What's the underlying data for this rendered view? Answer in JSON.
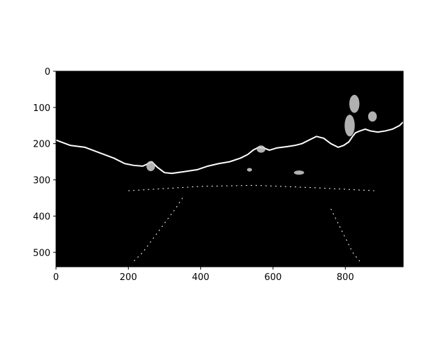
{
  "chart_data": {
    "type": "heatmap",
    "colormap": "gray",
    "background_color": "#000000",
    "foreground_color": "#ffffff",
    "x_range": [
      0,
      960
    ],
    "y_range": [
      0,
      540
    ],
    "y_inverted": true,
    "x_ticks": [
      0,
      200,
      400,
      600,
      800
    ],
    "y_ticks": [
      0,
      100,
      200,
      300,
      400,
      500
    ],
    "x_tick_labels": [
      "0",
      "200",
      "400",
      "600",
      "800"
    ],
    "y_tick_labels": [
      "0",
      "100",
      "200",
      "300",
      "400",
      "500"
    ],
    "grid": false,
    "edge_paths": [
      {
        "name": "horizon-edge",
        "points": [
          [
            0,
            190
          ],
          [
            40,
            205
          ],
          [
            80,
            210
          ],
          [
            120,
            225
          ],
          [
            160,
            240
          ],
          [
            190,
            255
          ],
          [
            215,
            260
          ],
          [
            240,
            262
          ],
          [
            255,
            255
          ],
          [
            265,
            250
          ],
          [
            280,
            265
          ],
          [
            300,
            280
          ],
          [
            320,
            282
          ],
          [
            350,
            278
          ],
          [
            390,
            272
          ],
          [
            420,
            262
          ],
          [
            450,
            255
          ],
          [
            480,
            250
          ],
          [
            510,
            240
          ],
          [
            530,
            230
          ],
          [
            545,
            218
          ],
          [
            560,
            210
          ],
          [
            575,
            212
          ],
          [
            590,
            218
          ],
          [
            610,
            212
          ],
          [
            640,
            208
          ],
          [
            660,
            205
          ],
          [
            680,
            200
          ],
          [
            700,
            190
          ],
          [
            720,
            180
          ],
          [
            740,
            185
          ],
          [
            760,
            200
          ],
          [
            780,
            210
          ],
          [
            795,
            205
          ],
          [
            810,
            195
          ],
          [
            820,
            180
          ],
          [
            828,
            170
          ],
          [
            840,
            165
          ],
          [
            855,
            160
          ],
          [
            870,
            165
          ],
          [
            890,
            168
          ],
          [
            910,
            165
          ],
          [
            930,
            160
          ],
          [
            950,
            150
          ],
          [
            960,
            140
          ]
        ]
      }
    ],
    "blobs": [
      {
        "name": "tree-left",
        "cx": 262,
        "cy": 262,
        "rx": 12,
        "ry": 14
      },
      {
        "name": "tree-center",
        "cx": 567,
        "cy": 215,
        "rx": 12,
        "ry": 10
      },
      {
        "name": "tree-right-top",
        "cx": 825,
        "cy": 90,
        "rx": 14,
        "ry": 25
      },
      {
        "name": "tree-right-mid",
        "cx": 812,
        "cy": 150,
        "rx": 14,
        "ry": 30
      },
      {
        "name": "tree-right-small",
        "cx": 875,
        "cy": 125,
        "rx": 12,
        "ry": 14
      },
      {
        "name": "sign-left",
        "cx": 535,
        "cy": 272,
        "rx": 7,
        "ry": 5
      },
      {
        "name": "sign-right",
        "cx": 672,
        "cy": 280,
        "rx": 14,
        "ry": 6
      }
    ],
    "road_marks": [
      {
        "name": "lane-line-left",
        "points": [
          [
            350,
            350
          ],
          [
            330,
            380
          ],
          [
            300,
            420
          ],
          [
            270,
            460
          ],
          [
            240,
            500
          ],
          [
            210,
            530
          ]
        ]
      },
      {
        "name": "lane-line-right",
        "points": [
          [
            760,
            380
          ],
          [
            780,
            420
          ],
          [
            800,
            460
          ],
          [
            820,
            500
          ],
          [
            840,
            525
          ]
        ]
      },
      {
        "name": "dash-row",
        "points": [
          [
            200,
            330
          ],
          [
            400,
            318
          ],
          [
            550,
            315
          ],
          [
            720,
            322
          ],
          [
            880,
            330
          ]
        ]
      }
    ]
  }
}
